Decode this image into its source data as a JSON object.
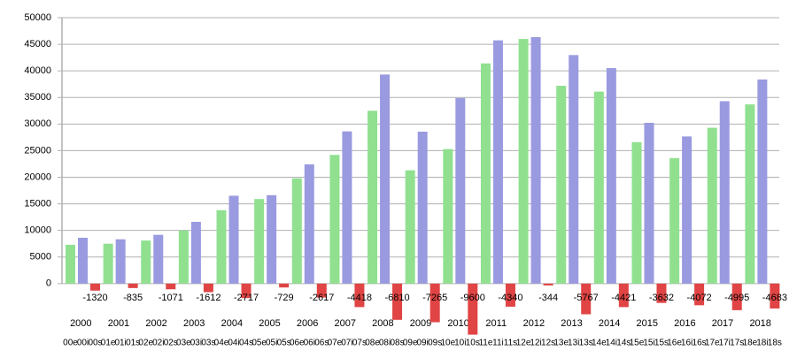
{
  "chart_data": {
    "type": "bar",
    "categories": [
      "2000",
      "2001",
      "2002",
      "2003",
      "2004",
      "2005",
      "2006",
      "2007",
      "2008",
      "2009",
      "2010",
      "2011",
      "2012",
      "2013",
      "2014",
      "2015",
      "2016",
      "2017",
      "2018"
    ],
    "subcategories": [
      "00e",
      "00i",
      "00s",
      "01e",
      "01i",
      "01s",
      "02e",
      "02i",
      "02s",
      "03e",
      "03i",
      "03s",
      "04e",
      "04i",
      "04s",
      "05e",
      "05i",
      "05s",
      "06e",
      "06i",
      "06s",
      "07e",
      "07i",
      "07s",
      "08e",
      "08i",
      "08s",
      "09e",
      "09i",
      "09s",
      "10e",
      "10i",
      "10s",
      "11e",
      "11i",
      "11s",
      "12e",
      "12i",
      "12s",
      "13e",
      "13i",
      "13s",
      "14e",
      "14i",
      "14s",
      "15e",
      "15i",
      "15s",
      "16e",
      "16i",
      "16s",
      "17e",
      "17i",
      "17s",
      "18e",
      "18i",
      "18s"
    ],
    "series": [
      {
        "color": "#90e090",
        "values": [
          7300,
          7500,
          8100,
          10000,
          13800,
          15900,
          19800,
          24200,
          32500,
          21300,
          25300,
          41400,
          46000,
          37200,
          36100,
          26600,
          23600,
          29300,
          33700
        ]
      },
      {
        "color": "#9a9ae0",
        "values": [
          8620,
          8330,
          9170,
          11610,
          16520,
          16630,
          22420,
          28620,
          39310,
          28570,
          34900,
          45740,
          46340,
          42970,
          40520,
          30230,
          27670,
          34300,
          38380
        ]
      },
      {
        "color": "#e04444",
        "values": [
          -1320,
          -835,
          -1071,
          -1612,
          -2717,
          -729,
          -2617,
          -4418,
          -6810,
          -7265,
          -9600,
          -4340,
          -344,
          -5767,
          -4421,
          -3632,
          -4072,
          -4995,
          -4683
        ]
      }
    ],
    "ylim": [
      -10000,
      50000
    ],
    "yticks": [
      0,
      5000,
      10000,
      15000,
      20000,
      25000,
      30000,
      35000,
      40000,
      45000,
      50000
    ],
    "grid": true
  }
}
